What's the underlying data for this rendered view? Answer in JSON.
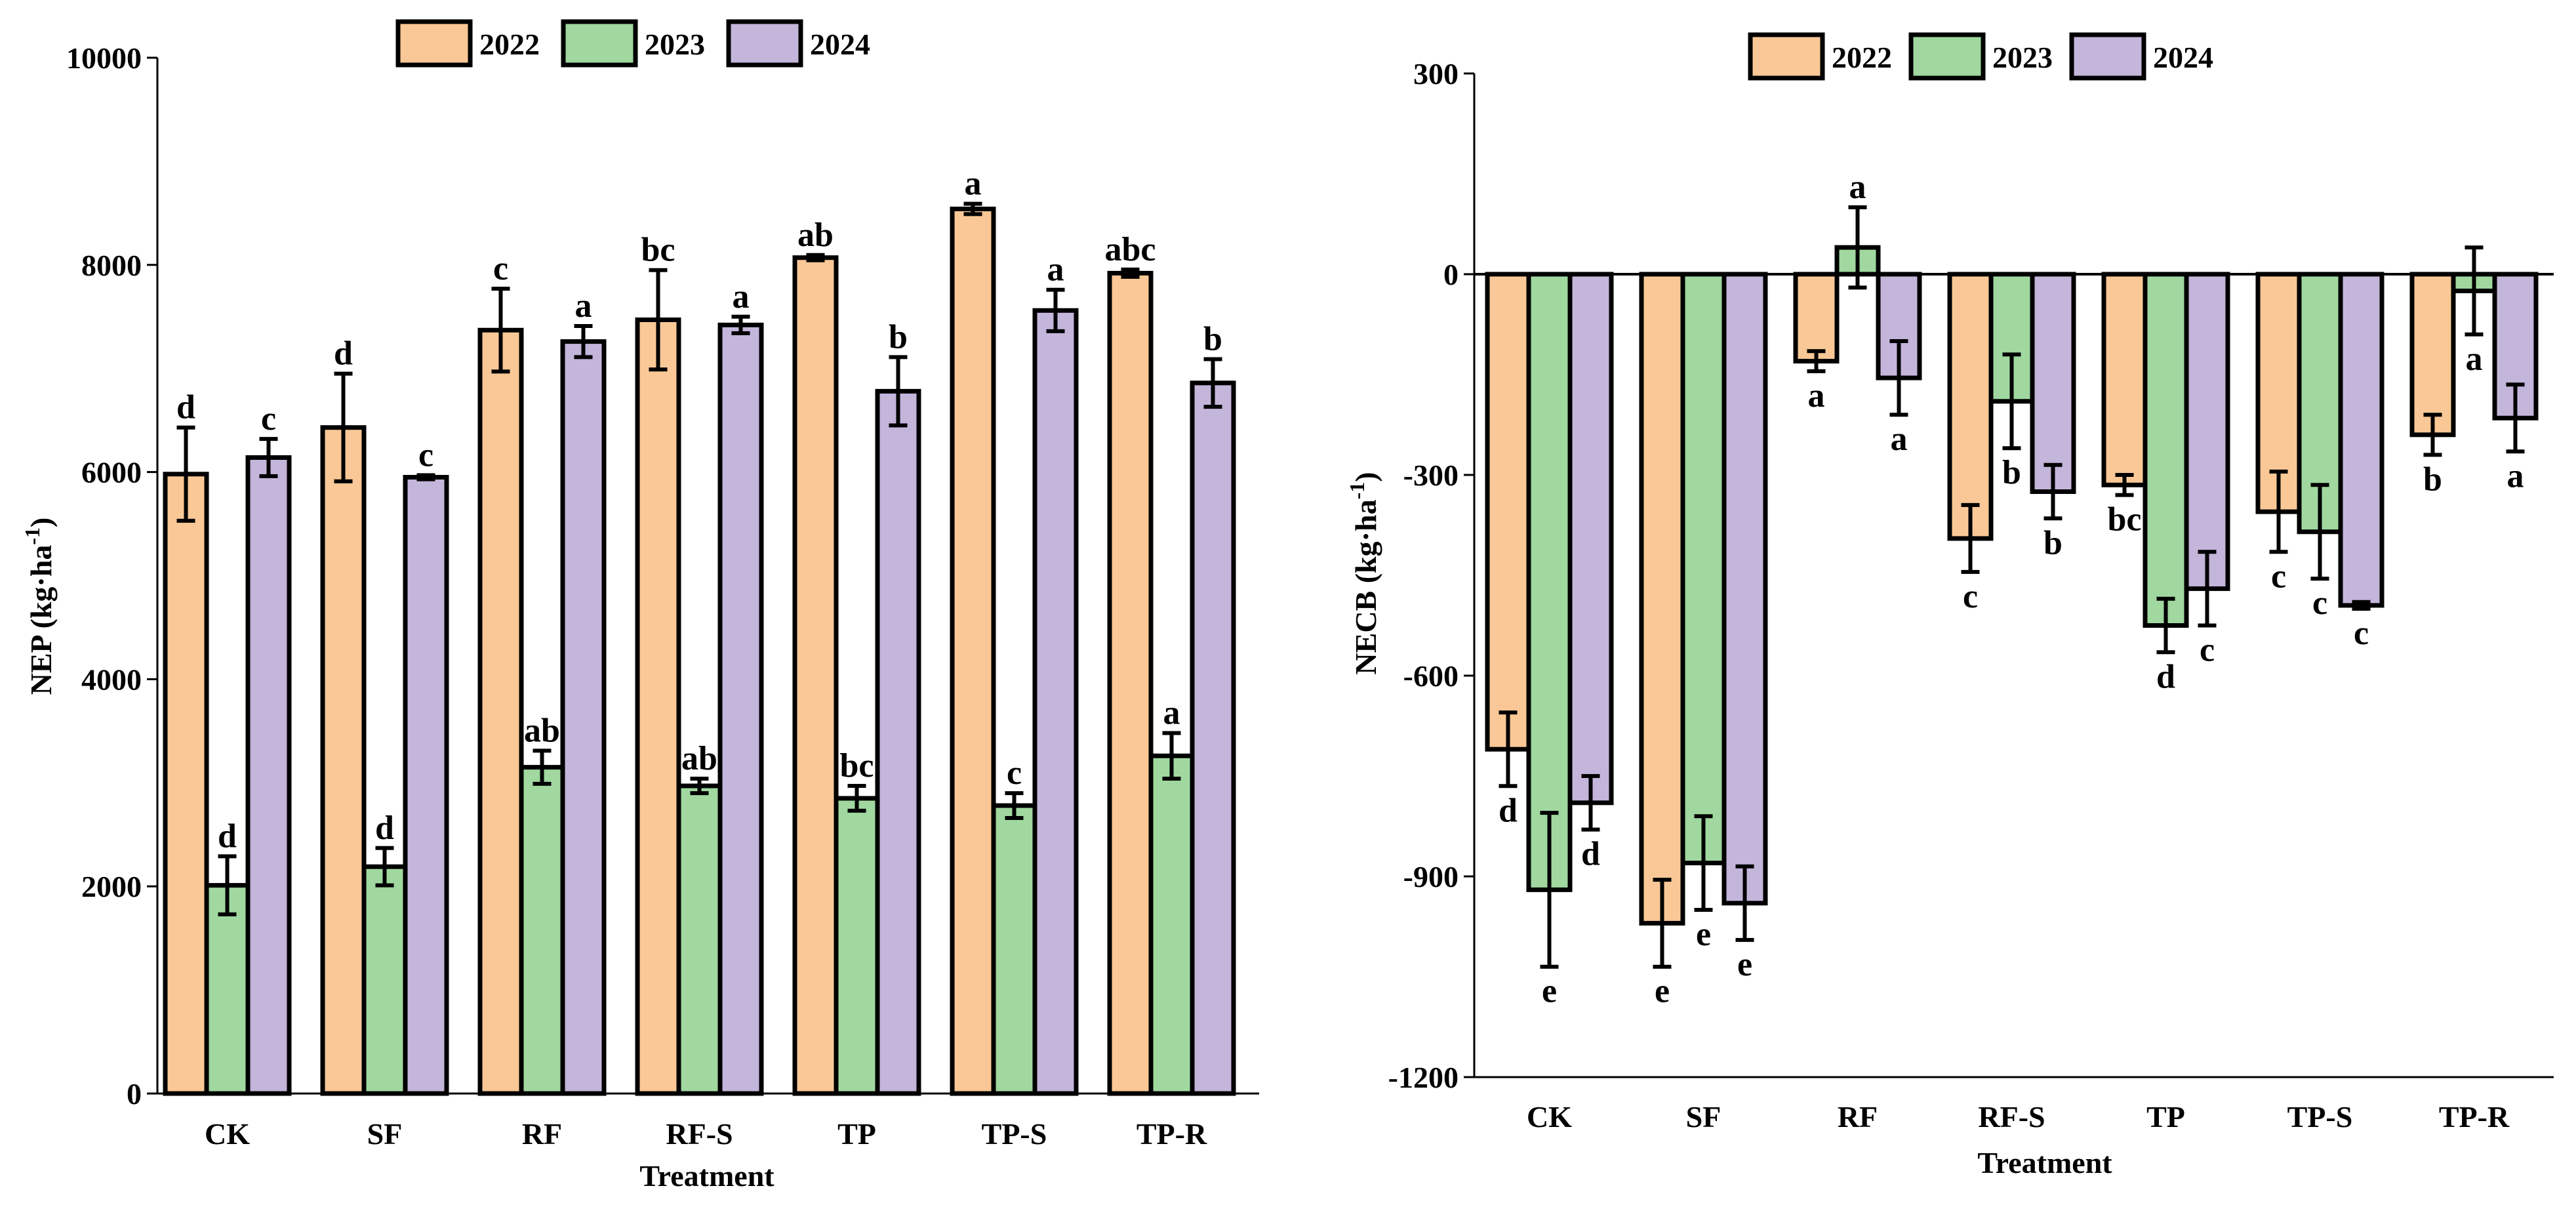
{
  "chart_data": [
    {
      "type": "bar",
      "xlabel": "Treatment",
      "ylabel": "NEP (kg·ha⁻¹)",
      "ylabel_main": "NEP (kg·ha",
      "ylabel_sup": "-1",
      "ylabel_close": ")",
      "ylim": [
        0,
        10000
      ],
      "yticks": [
        0,
        2000,
        4000,
        6000,
        8000,
        10000
      ],
      "yticklabels": [
        "0",
        "2000",
        "4000",
        "6000",
        "8000",
        "10000"
      ],
      "legend_position": "top-center",
      "categories": [
        "CK",
        "SF",
        "RF",
        "RF-S",
        "TP",
        "TP-S",
        "TP-R"
      ],
      "series": [
        {
          "name": "2022",
          "color": "#f9c896",
          "values": [
            5980,
            6430,
            7370,
            7470,
            8070,
            8540,
            7920
          ],
          "errors": [
            450,
            520,
            400,
            480,
            25,
            50,
            35
          ],
          "labels": [
            "d",
            "d",
            "c",
            "bc",
            "ab",
            "a",
            "abc"
          ]
        },
        {
          "name": "2023",
          "color": "#a0d8a0",
          "values": [
            2010,
            2190,
            3150,
            2970,
            2850,
            2780,
            3260
          ],
          "errors": [
            280,
            180,
            160,
            70,
            120,
            120,
            220
          ],
          "labels": [
            "d",
            "d",
            "ab",
            "ab",
            "bc",
            "c",
            "a"
          ]
        },
        {
          "name": "2024",
          "color": "#c4b5da",
          "values": [
            6140,
            5950,
            7260,
            7420,
            6780,
            7560,
            6860
          ],
          "errors": [
            180,
            20,
            150,
            80,
            330,
            200,
            230
          ],
          "labels": [
            "c",
            "c",
            "a",
            "a",
            "b",
            "a",
            "b"
          ]
        }
      ]
    },
    {
      "type": "bar",
      "xlabel": "Treatment",
      "ylabel": "NECB (kg·ha⁻¹)",
      "ylabel_main": "NECB (kg·ha",
      "ylabel_sup": "-1",
      "ylabel_close": ")",
      "ylim": [
        -1200,
        300
      ],
      "yticks": [
        -1200,
        -900,
        -600,
        -300,
        0,
        300
      ],
      "yticklabels": [
        "-1200",
        "-900",
        "-600",
        "-300",
        "0",
        "300"
      ],
      "legend_position": "top-center",
      "categories": [
        "CK",
        "SF",
        "RF",
        "RF-S",
        "TP",
        "TP-S",
        "TP-R"
      ],
      "series": [
        {
          "name": "2022",
          "color": "#f9c896",
          "values": [
            -710,
            -970,
            -130,
            -395,
            -315,
            -355,
            -240
          ],
          "errors": [
            55,
            65,
            15,
            50,
            15,
            60,
            30
          ],
          "labels": [
            "d",
            "e",
            "a",
            "c",
            "bc",
            "c",
            "b"
          ]
        },
        {
          "name": "2023",
          "color": "#a0d8a0",
          "values": [
            -920,
            -880,
            40,
            -190,
            -525,
            -385,
            -25
          ],
          "errors": [
            115,
            70,
            60,
            70,
            40,
            70,
            65
          ],
          "labels": [
            "e",
            "e",
            "a",
            "b",
            "d",
            "c",
            "a"
          ]
        },
        {
          "name": "2024",
          "color": "#c4b5da",
          "values": [
            -790,
            -940,
            -155,
            -325,
            -470,
            -495,
            -215
          ],
          "errors": [
            40,
            55,
            55,
            40,
            55,
            5,
            50
          ],
          "labels": [
            "d",
            "e",
            "a",
            "b",
            "c",
            "c",
            "a"
          ]
        }
      ]
    }
  ]
}
